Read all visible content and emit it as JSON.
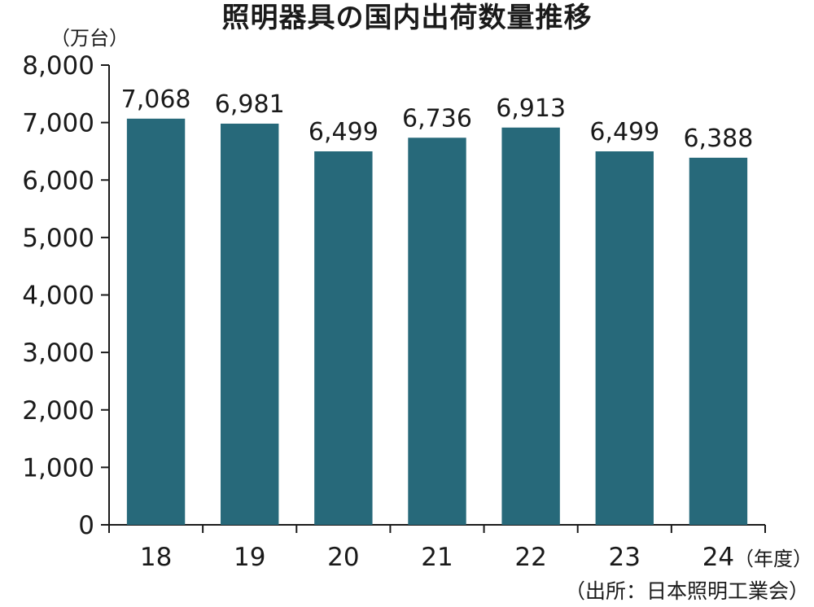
{
  "chart_data": {
    "type": "bar",
    "title": "照明器具の国内出荷数量推移",
    "y_unit": "（万台）",
    "x_unit": "（年度）",
    "source": "（出所：日本照明工業会）",
    "categories": [
      "18",
      "19",
      "20",
      "21",
      "22",
      "23",
      "24"
    ],
    "values": [
      7068,
      6981,
      6499,
      6736,
      6913,
      6499,
      6388
    ],
    "value_labels": [
      "7,068",
      "6,981",
      "6,499",
      "6,736",
      "6,913",
      "6,499",
      "6,388"
    ],
    "ylim": [
      0,
      8000
    ],
    "yticks": [
      0,
      1000,
      2000,
      3000,
      4000,
      5000,
      6000,
      7000,
      8000
    ],
    "ytick_labels": [
      "0",
      "1,000",
      "2,000",
      "3,000",
      "4,000",
      "5,000",
      "6,000",
      "7,000",
      "8,000"
    ],
    "bar_color": "#27697a",
    "grid": false,
    "legend": "none"
  }
}
